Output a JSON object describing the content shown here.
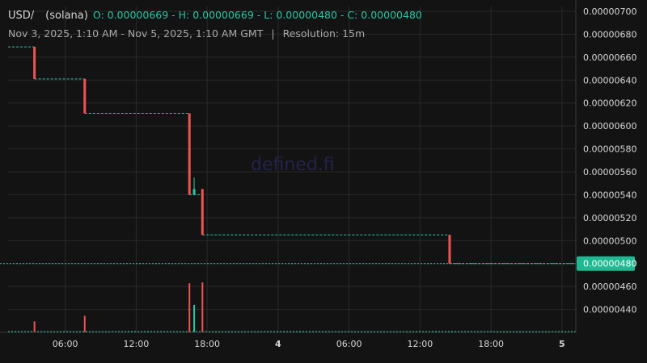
{
  "header": {
    "symbol": "USD/",
    "chain": "(solana)",
    "ohlc": "O: 0.00000669 - H: 0.00000669 - L: 0.00000480 - C: 0.00000480",
    "date_range": "Nov 3, 2025, 1:10 AM - Nov 5, 2025, 1:10 AM GMT",
    "separator": "|",
    "resolution": "Resolution: 15m"
  },
  "watermark": "defined.fi",
  "colors": {
    "up": "#26c6a6",
    "down": "#ef5350",
    "background": "#131313",
    "grid": "#2a2a2a",
    "text": "#d6d6d6"
  },
  "chart_data": {
    "type": "candlestick",
    "y_ticks": [
      "0.00000700",
      "0.00000680",
      "0.00000660",
      "0.00000640",
      "0.00000620",
      "0.00000600",
      "0.00000580",
      "0.00000560",
      "0.00000540",
      "0.00000520",
      "0.00000500",
      "0.00000480",
      "0.00000460",
      "0.00000440"
    ],
    "x_ticks": [
      "06:00",
      "12:00",
      "18:00",
      "4",
      "06:00",
      "12:00",
      "18:00",
      "5"
    ],
    "x_tick_hours": [
      6,
      12,
      18,
      24,
      30,
      36,
      42,
      48
    ],
    "ylim": [
      4.2e-06,
      7e-06
    ],
    "xlim_hours": [
      1.17,
      49.17
    ],
    "current_price_label": "0.00000480",
    "current_price": 4.8e-06,
    "levels": [
      {
        "from": 1.17,
        "to": 3.4,
        "value": 6.69e-06
      },
      {
        "from": 3.4,
        "to": 7.65,
        "value": 6.41e-06
      },
      {
        "from": 7.65,
        "to": 16.5,
        "value": 6.11e-06
      },
      {
        "from": 16.5,
        "to": 17.6,
        "value": 5.4e-06
      },
      {
        "from": 17.6,
        "to": 38.5,
        "value": 5.05e-06
      },
      {
        "from": 38.5,
        "to": 49.17,
        "value": 4.8e-06
      }
    ],
    "candles": [
      {
        "t": 3.4,
        "open": 6.69e-06,
        "high": 6.69e-06,
        "low": 6.41e-06,
        "close": 6.41e-06
      },
      {
        "t": 7.65,
        "open": 6.41e-06,
        "high": 6.41e-06,
        "low": 6.11e-06,
        "close": 6.11e-06
      },
      {
        "t": 16.5,
        "open": 6.11e-06,
        "high": 6.11e-06,
        "low": 5.4e-06,
        "close": 5.4e-06
      },
      {
        "t": 16.9,
        "open": 5.4e-06,
        "high": 5.55e-06,
        "low": 5.4e-06,
        "close": 5.45e-06
      },
      {
        "t": 17.6,
        "open": 5.45e-06,
        "high": 5.45e-06,
        "low": 5.05e-06,
        "close": 5.05e-06
      },
      {
        "t": 38.5,
        "open": 5.05e-06,
        "high": 5.05e-06,
        "low": 4.8e-06,
        "close": 4.8e-06
      }
    ],
    "volume": [
      {
        "t": 3.4,
        "v": 0.22,
        "dir": "down"
      },
      {
        "t": 7.65,
        "v": 0.33,
        "dir": "down"
      },
      {
        "t": 16.5,
        "v": 0.98,
        "dir": "down"
      },
      {
        "t": 16.9,
        "v": 0.55,
        "dir": "up"
      },
      {
        "t": 17.6,
        "v": 1.0,
        "dir": "down"
      }
    ]
  }
}
